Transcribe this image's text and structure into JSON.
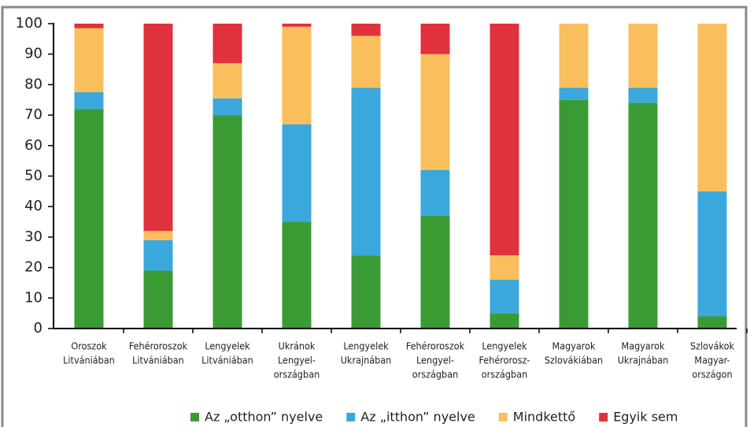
{
  "chart_data": {
    "type": "stacked_bar",
    "categories": [
      [
        "Oroszok",
        "Litvániában"
      ],
      [
        "Fehéroroszok",
        "Litvániában"
      ],
      [
        "Lengyelek",
        "Litvániában"
      ],
      [
        "Ukránok",
        "Lengyel-",
        "országban"
      ],
      [
        "Lengyelek",
        "Ukrajnában"
      ],
      [
        "Fehéroroszok",
        "Lengyel-",
        "országban"
      ],
      [
        "Lengyelek",
        "Fehérorosz-",
        "országban"
      ],
      [
        "Magyarok",
        "Szlovákiában"
      ],
      [
        "Magyarok",
        "Ukrajnában"
      ],
      [
        "Szlovákok",
        "Magyar-",
        "országon"
      ]
    ],
    "series": [
      {
        "name": "Az „otthon” nyelve",
        "color": "#3a9b35",
        "values": [
          72,
          19,
          70,
          35,
          24,
          37,
          5,
          75,
          74,
          4
        ]
      },
      {
        "name": "Az „itthon” nyelve",
        "color": "#3aa8dc",
        "values": [
          5.5,
          10,
          5.5,
          32,
          55,
          15,
          11,
          4,
          5,
          41
        ]
      },
      {
        "name": "Mindkettő",
        "color": "#f9bf5c",
        "values": [
          21,
          3,
          11.5,
          32,
          17,
          38,
          8,
          21,
          21,
          55
        ]
      },
      {
        "name": "Egyik sem",
        "color": "#e0323c",
        "values": [
          1.5,
          68,
          13,
          1,
          4,
          10,
          76,
          0,
          0,
          0
        ]
      }
    ],
    "ylim": [
      0,
      100
    ],
    "yticks": [
      0,
      10,
      20,
      30,
      40,
      50,
      60,
      70,
      80,
      90,
      100
    ],
    "grid": false
  }
}
